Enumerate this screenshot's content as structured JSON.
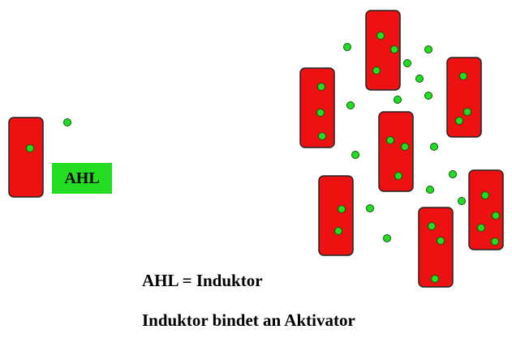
{
  "colors": {
    "cell_fill": "#ee1111",
    "cell_stroke": "#222222",
    "molecule_fill": "#22dd22",
    "molecule_stroke": "#0a5a0a",
    "label_bg": "#22dd22",
    "text": "#000000"
  },
  "legend": {
    "ahl_label": "AHL"
  },
  "captions": {
    "line1": "AHL = Induktor",
    "line2": "Induktor bindet an Aktivator"
  }
}
